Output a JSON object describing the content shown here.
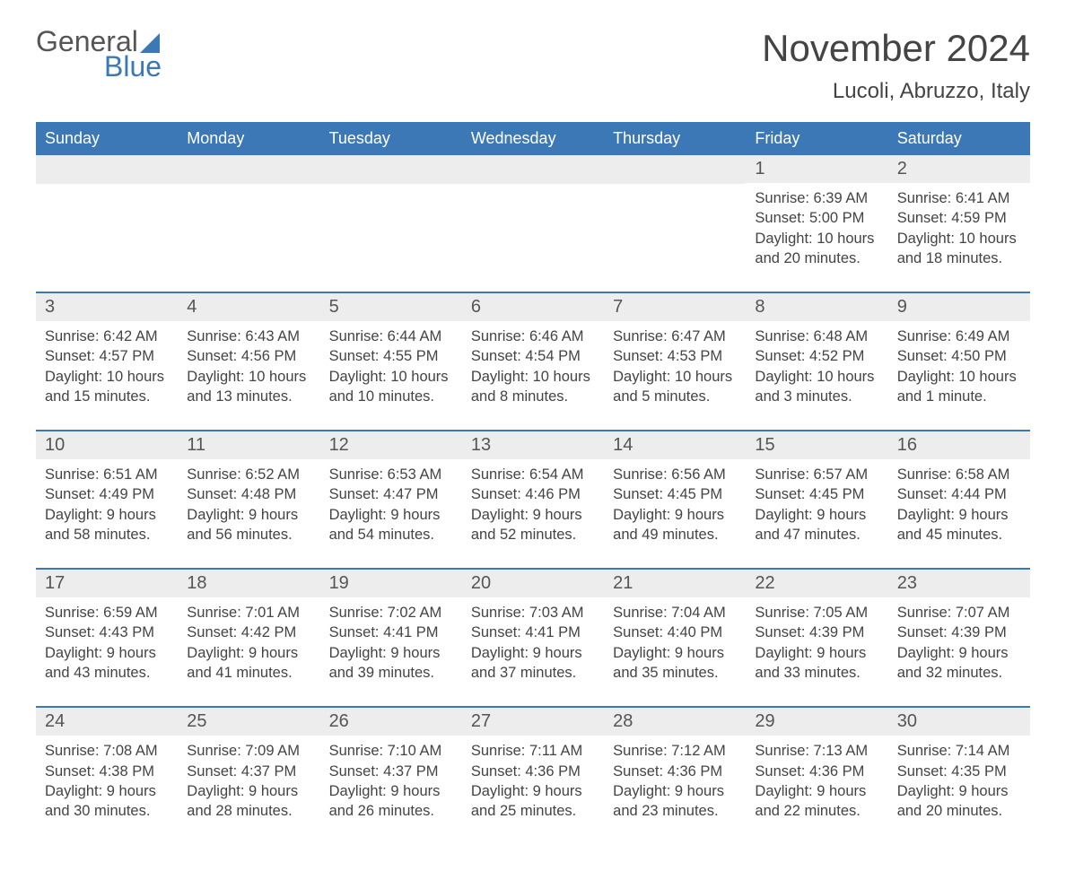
{
  "logo": {
    "line1": "General",
    "line2": "Blue"
  },
  "title": "November 2024",
  "location": "Lucoli, Abruzzo, Italy",
  "colors": {
    "brand_blue": "#3b78b5",
    "header_bg": "#3b78b5",
    "header_text": "#ffffff",
    "daynum_bg": "#ededed",
    "week_border": "#3b78b5",
    "text": "#444444",
    "background": "#ffffff"
  },
  "typography": {
    "title_fontsize": 42,
    "location_fontsize": 24,
    "dayheader_fontsize": 18,
    "daynum_fontsize": 20,
    "detail_fontsize": 16.5,
    "font_family": "Arial"
  },
  "layout": {
    "columns": 7,
    "rows": 5
  },
  "day_names": [
    "Sunday",
    "Monday",
    "Tuesday",
    "Wednesday",
    "Thursday",
    "Friday",
    "Saturday"
  ],
  "labels": {
    "sunrise": "Sunrise:",
    "sunset": "Sunset:",
    "daylight": "Daylight:"
  },
  "weeks": [
    [
      null,
      null,
      null,
      null,
      null,
      {
        "day": "1",
        "sunrise": "6:39 AM",
        "sunset": "5:00 PM",
        "daylight": "10 hours and 20 minutes."
      },
      {
        "day": "2",
        "sunrise": "6:41 AM",
        "sunset": "4:59 PM",
        "daylight": "10 hours and 18 minutes."
      }
    ],
    [
      {
        "day": "3",
        "sunrise": "6:42 AM",
        "sunset": "4:57 PM",
        "daylight": "10 hours and 15 minutes."
      },
      {
        "day": "4",
        "sunrise": "6:43 AM",
        "sunset": "4:56 PM",
        "daylight": "10 hours and 13 minutes."
      },
      {
        "day": "5",
        "sunrise": "6:44 AM",
        "sunset": "4:55 PM",
        "daylight": "10 hours and 10 minutes."
      },
      {
        "day": "6",
        "sunrise": "6:46 AM",
        "sunset": "4:54 PM",
        "daylight": "10 hours and 8 minutes."
      },
      {
        "day": "7",
        "sunrise": "6:47 AM",
        "sunset": "4:53 PM",
        "daylight": "10 hours and 5 minutes."
      },
      {
        "day": "8",
        "sunrise": "6:48 AM",
        "sunset": "4:52 PM",
        "daylight": "10 hours and 3 minutes."
      },
      {
        "day": "9",
        "sunrise": "6:49 AM",
        "sunset": "4:50 PM",
        "daylight": "10 hours and 1 minute."
      }
    ],
    [
      {
        "day": "10",
        "sunrise": "6:51 AM",
        "sunset": "4:49 PM",
        "daylight": "9 hours and 58 minutes."
      },
      {
        "day": "11",
        "sunrise": "6:52 AM",
        "sunset": "4:48 PM",
        "daylight": "9 hours and 56 minutes."
      },
      {
        "day": "12",
        "sunrise": "6:53 AM",
        "sunset": "4:47 PM",
        "daylight": "9 hours and 54 minutes."
      },
      {
        "day": "13",
        "sunrise": "6:54 AM",
        "sunset": "4:46 PM",
        "daylight": "9 hours and 52 minutes."
      },
      {
        "day": "14",
        "sunrise": "6:56 AM",
        "sunset": "4:45 PM",
        "daylight": "9 hours and 49 minutes."
      },
      {
        "day": "15",
        "sunrise": "6:57 AM",
        "sunset": "4:45 PM",
        "daylight": "9 hours and 47 minutes."
      },
      {
        "day": "16",
        "sunrise": "6:58 AM",
        "sunset": "4:44 PM",
        "daylight": "9 hours and 45 minutes."
      }
    ],
    [
      {
        "day": "17",
        "sunrise": "6:59 AM",
        "sunset": "4:43 PM",
        "daylight": "9 hours and 43 minutes."
      },
      {
        "day": "18",
        "sunrise": "7:01 AM",
        "sunset": "4:42 PM",
        "daylight": "9 hours and 41 minutes."
      },
      {
        "day": "19",
        "sunrise": "7:02 AM",
        "sunset": "4:41 PM",
        "daylight": "9 hours and 39 minutes."
      },
      {
        "day": "20",
        "sunrise": "7:03 AM",
        "sunset": "4:41 PM",
        "daylight": "9 hours and 37 minutes."
      },
      {
        "day": "21",
        "sunrise": "7:04 AM",
        "sunset": "4:40 PM",
        "daylight": "9 hours and 35 minutes."
      },
      {
        "day": "22",
        "sunrise": "7:05 AM",
        "sunset": "4:39 PM",
        "daylight": "9 hours and 33 minutes."
      },
      {
        "day": "23",
        "sunrise": "7:07 AM",
        "sunset": "4:39 PM",
        "daylight": "9 hours and 32 minutes."
      }
    ],
    [
      {
        "day": "24",
        "sunrise": "7:08 AM",
        "sunset": "4:38 PM",
        "daylight": "9 hours and 30 minutes."
      },
      {
        "day": "25",
        "sunrise": "7:09 AM",
        "sunset": "4:37 PM",
        "daylight": "9 hours and 28 minutes."
      },
      {
        "day": "26",
        "sunrise": "7:10 AM",
        "sunset": "4:37 PM",
        "daylight": "9 hours and 26 minutes."
      },
      {
        "day": "27",
        "sunrise": "7:11 AM",
        "sunset": "4:36 PM",
        "daylight": "9 hours and 25 minutes."
      },
      {
        "day": "28",
        "sunrise": "7:12 AM",
        "sunset": "4:36 PM",
        "daylight": "9 hours and 23 minutes."
      },
      {
        "day": "29",
        "sunrise": "7:13 AM",
        "sunset": "4:36 PM",
        "daylight": "9 hours and 22 minutes."
      },
      {
        "day": "30",
        "sunrise": "7:14 AM",
        "sunset": "4:35 PM",
        "daylight": "9 hours and 20 minutes."
      }
    ]
  ]
}
